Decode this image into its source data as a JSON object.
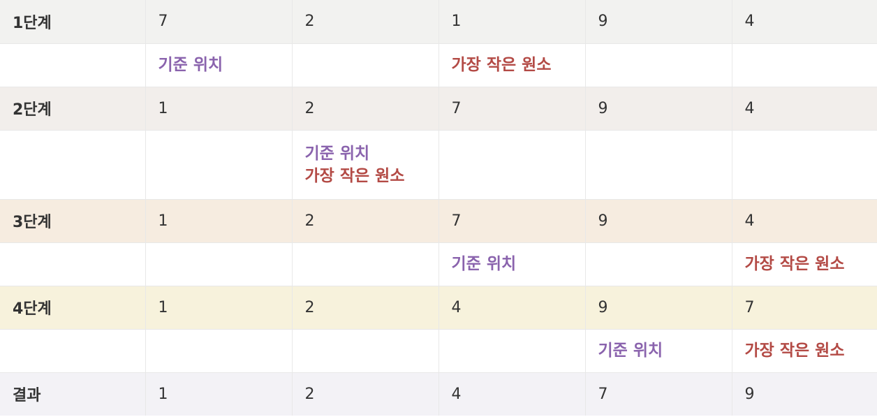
{
  "colors": {
    "pivot_text": "#8a63ad",
    "min_text": "#b34a45"
  },
  "stages": [
    {
      "label": "1단계",
      "bg": "#f2f2f0",
      "values": [
        "7",
        "2",
        "1",
        "9",
        "4"
      ],
      "notes": [
        [
          "기준 위치"
        ],
        [],
        [
          "가장 작은 원소"
        ],
        [],
        []
      ]
    },
    {
      "label": "2단계",
      "bg": "#f2eeeb",
      "values": [
        "1",
        "2",
        "7",
        "9",
        "4"
      ],
      "notes": [
        [],
        [
          "기준 위치",
          "가장 작은 원소"
        ],
        [],
        [],
        []
      ]
    },
    {
      "label": "3단계",
      "bg": "#f6ece0",
      "values": [
        "1",
        "2",
        "7",
        "9",
        "4"
      ],
      "notes": [
        [],
        [],
        [
          "기준 위치"
        ],
        [],
        [
          "가장 작은 원소"
        ]
      ]
    },
    {
      "label": "4단계",
      "bg": "#f7f2dc",
      "values": [
        "1",
        "2",
        "4",
        "9",
        "7"
      ],
      "notes": [
        [],
        [],
        [],
        [
          "기준 위치"
        ],
        [
          "가장 작은 원소"
        ]
      ]
    }
  ],
  "result": {
    "label": "결과",
    "bg": "#f3f2f6",
    "values": [
      "1",
      "2",
      "4",
      "7",
      "9"
    ]
  }
}
